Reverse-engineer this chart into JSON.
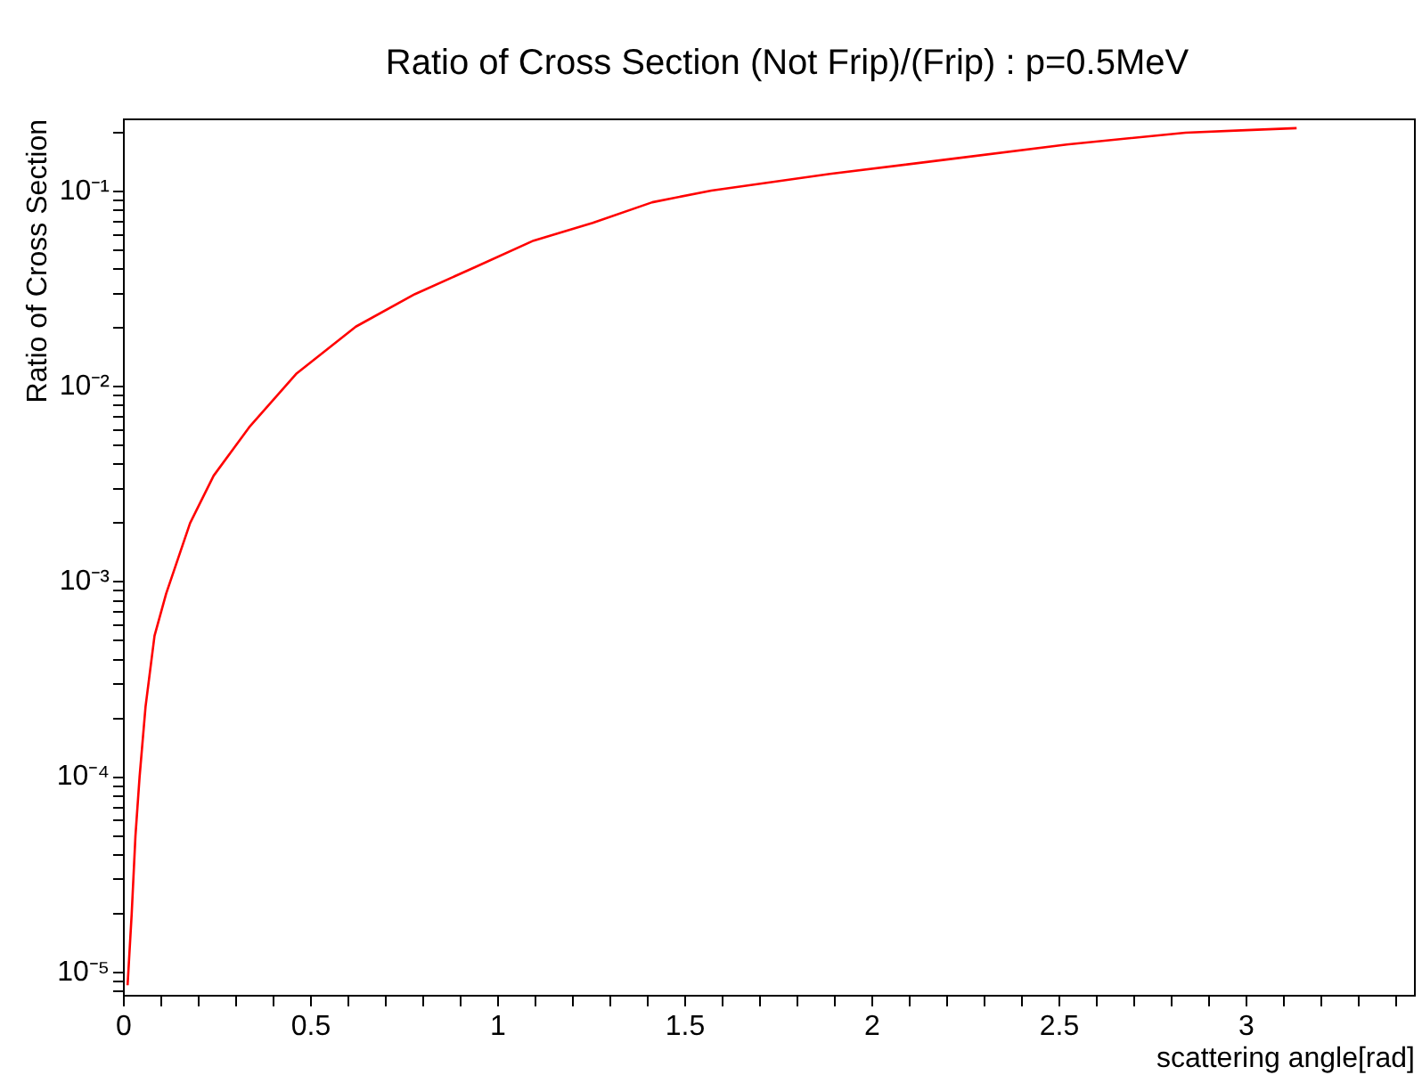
{
  "chart_data": {
    "type": "line",
    "title": "Ratio of Cross Section (Not Frip)/(Frip) : p=0.5MeV",
    "xlabel": "scattering angle[rad]",
    "ylabel": "Ratio of Cross Section",
    "x": [
      0.01,
      0.021,
      0.031,
      0.042,
      0.058,
      0.082,
      0.113,
      0.177,
      0.24,
      0.335,
      0.462,
      0.62,
      0.778,
      0.937,
      1.095,
      1.253,
      1.412,
      1.57,
      1.887,
      2.203,
      2.52,
      2.837,
      3.0,
      3.134
    ],
    "series": [
      {
        "color": "#ff0000",
        "values": [
          8.6e-06,
          2e-05,
          5e-05,
          0.0001,
          0.00023,
          0.00053,
          0.00087,
          0.002,
          0.0035,
          0.0062,
          0.0117,
          0.0203,
          0.0298,
          0.0408,
          0.056,
          0.069,
          0.088,
          0.101,
          0.123,
          0.146,
          0.174,
          0.2,
          0.206,
          0.211
        ]
      }
    ],
    "xlim": [
      0,
      3.45
    ],
    "ylim": [
      7.6e-06,
      0.234
    ],
    "log": "y",
    "grid": false,
    "legend": false,
    "marker": "none",
    "line_style": "solid",
    "xticks": [
      0,
      {
        "value": 0.1,
        "label": null
      },
      {
        "value": 0.2,
        "label": null
      },
      {
        "value": 0.3,
        "label": null
      },
      {
        "value": 0.4,
        "label": null
      },
      0.5,
      {
        "value": 0.6,
        "label": null
      },
      {
        "value": 0.7,
        "label": null
      },
      {
        "value": 0.8,
        "label": null
      },
      {
        "value": 0.9,
        "label": null
      },
      1,
      {
        "value": 1.1,
        "label": null
      },
      {
        "value": 1.2,
        "label": null
      },
      {
        "value": 1.3,
        "label": null
      },
      {
        "value": 1.4,
        "label": null
      },
      1.5,
      {
        "value": 1.6,
        "label": null
      },
      {
        "value": 1.7,
        "label": null
      },
      {
        "value": 1.8,
        "label": null
      },
      {
        "value": 1.9,
        "label": null
      },
      2,
      {
        "value": 2.1,
        "label": null
      },
      {
        "value": 2.2,
        "label": null
      },
      {
        "value": 2.3,
        "label": null
      },
      {
        "value": 2.4,
        "label": null
      },
      2.5,
      {
        "value": 2.6,
        "label": null
      },
      {
        "value": 2.7,
        "label": null
      },
      {
        "value": 2.8,
        "label": null
      },
      {
        "value": 2.9,
        "label": null
      },
      3,
      {
        "value": 3.1,
        "label": null
      },
      {
        "value": 3.2,
        "label": null
      },
      {
        "value": 3.3,
        "label": null
      },
      {
        "value": 3.4,
        "label": null
      }
    ],
    "yticks": [
      {
        "value": 8e-06,
        "label": null
      },
      {
        "value": 9e-06,
        "label": null
      },
      {
        "value": 1e-05,
        "label": "10⁻⁵"
      },
      {
        "value": 2e-05,
        "label": null
      },
      {
        "value": 3e-05,
        "label": null
      },
      {
        "value": 4e-05,
        "label": null
      },
      {
        "value": 5e-05,
        "label": null
      },
      {
        "value": 6e-05,
        "label": null
      },
      {
        "value": 7e-05,
        "label": null
      },
      {
        "value": 8e-05,
        "label": null
      },
      {
        "value": 9e-05,
        "label": null
      },
      {
        "value": 0.0001,
        "label": "10⁻⁴"
      },
      {
        "value": 0.0002,
        "label": null
      },
      {
        "value": 0.0003,
        "label": null
      },
      {
        "value": 0.0004,
        "label": null
      },
      {
        "value": 0.0005,
        "label": null
      },
      {
        "value": 0.0006,
        "label": null
      },
      {
        "value": 0.0007,
        "label": null
      },
      {
        "value": 0.0008,
        "label": null
      },
      {
        "value": 0.0009,
        "label": null
      },
      {
        "value": 0.001,
        "label": "10⁻³"
      },
      {
        "value": 0.002,
        "label": null
      },
      {
        "value": 0.003,
        "label": null
      },
      {
        "value": 0.004,
        "label": null
      },
      {
        "value": 0.005,
        "label": null
      },
      {
        "value": 0.006,
        "label": null
      },
      {
        "value": 0.007,
        "label": null
      },
      {
        "value": 0.008,
        "label": null
      },
      {
        "value": 0.009,
        "label": null
      },
      {
        "value": 0.01,
        "label": "10⁻²"
      },
      {
        "value": 0.02,
        "label": null
      },
      {
        "value": 0.03,
        "label": null
      },
      {
        "value": 0.04,
        "label": null
      },
      {
        "value": 0.05,
        "label": null
      },
      {
        "value": 0.06,
        "label": null
      },
      {
        "value": 0.07,
        "label": null
      },
      {
        "value": 0.08,
        "label": null
      },
      {
        "value": 0.09,
        "label": null
      },
      {
        "value": 0.1,
        "label": "10⁻¹"
      },
      {
        "value": 0.2,
        "label": null
      }
    ]
  }
}
